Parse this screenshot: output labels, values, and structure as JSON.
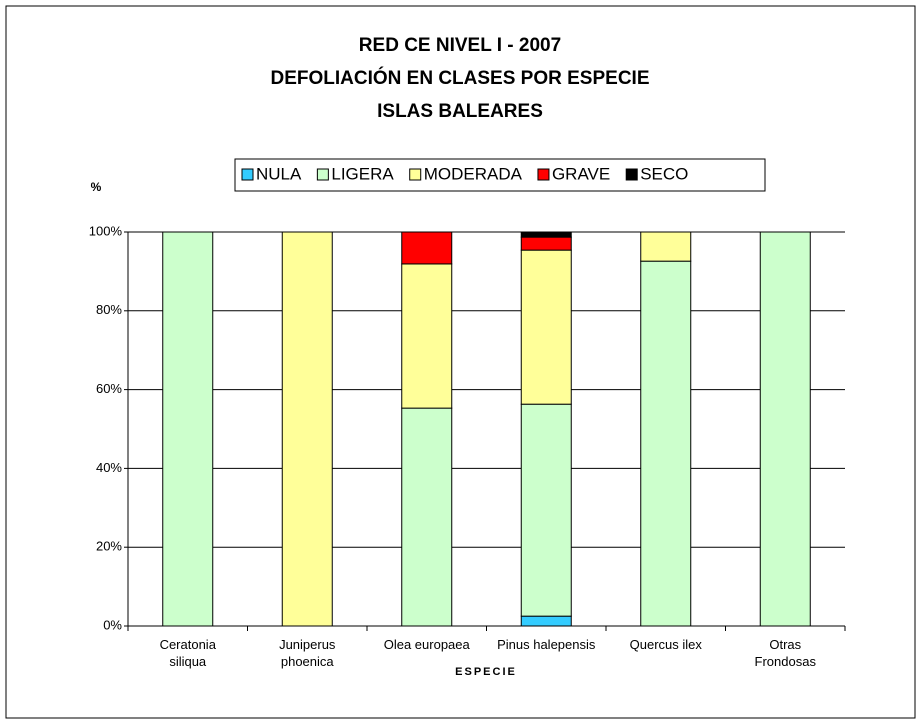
{
  "chart_data": {
    "type": "stacked_bar",
    "title": [
      "RED CE NIVEL I - 2007",
      "DEFOLIACIÓN EN CLASES POR ESPECIE",
      "ISLAS BALEARES"
    ],
    "y_label": "%",
    "x_label": "ESPECIE",
    "categories": [
      "Ceratonia\nsiliqua",
      "Juniperus\nphoenica",
      "Olea europaea",
      "Pinus halepensis",
      "Quercus ilex",
      "Otras\nFrondosas"
    ],
    "series": [
      {
        "name": "NULA",
        "color": "#33ccff",
        "values": [
          0,
          0,
          0,
          2.5,
          0,
          0
        ]
      },
      {
        "name": "LIGERA",
        "color": "#ccffcc",
        "values": [
          100,
          0,
          55.3,
          53.8,
          92.6,
          100
        ]
      },
      {
        "name": "MODERADA",
        "color": "#ffff99",
        "values": [
          0,
          100,
          36.6,
          39.1,
          7.4,
          0
        ]
      },
      {
        "name": "GRAVE",
        "color": "#ff0000",
        "values": [
          0,
          0,
          8.1,
          3.3,
          0,
          0
        ]
      },
      {
        "name": "SECO",
        "color": "#000000",
        "values": [
          0,
          0,
          0,
          1.3,
          0,
          0
        ]
      }
    ],
    "ylim": [
      0,
      100
    ],
    "yticks": [
      {
        "value": 0,
        "label": "0%"
      },
      {
        "value": 20,
        "label": "20%"
      },
      {
        "value": 40,
        "label": "40%"
      },
      {
        "value": 60,
        "label": "60%"
      },
      {
        "value": 80,
        "label": "80%"
      },
      {
        "value": 100,
        "label": "100%"
      }
    ],
    "grid": true,
    "legend": "top"
  }
}
